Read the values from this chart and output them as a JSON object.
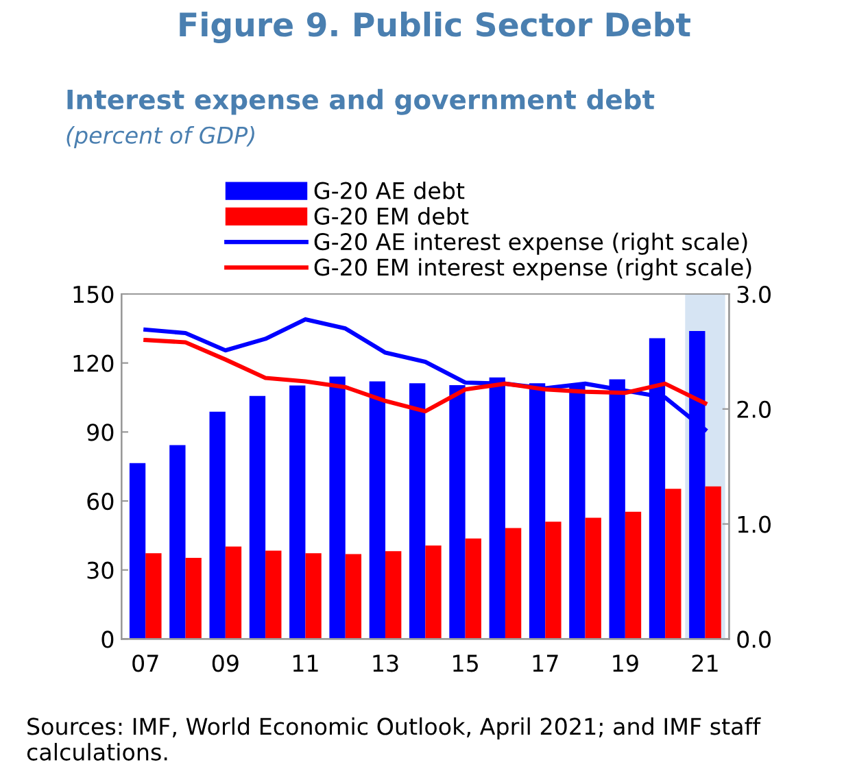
{
  "chart_data": {
    "type": "bar",
    "title": "Figure 9. Public Sector Debt",
    "subtitle": "Interest expense and government debt",
    "categories": [
      "07",
      null,
      "09",
      null,
      "11",
      null,
      "13",
      null,
      "15",
      null,
      "17",
      null,
      "19",
      null,
      "21"
    ],
    "series": [
      {
        "name": "G-20 AE debt",
        "color": "#0000ff",
        "values": [
          76.5,
          84.3,
          98.8,
          105.7,
          110.2,
          114.1,
          112.0,
          111.2,
          110.4,
          113.7,
          111.2,
          110.8,
          112.9,
          130.8,
          133.9
        ]
      },
      {
        "name": "G-20 EM debt",
        "color": "#ff0000",
        "values": [
          37.3,
          35.3,
          40.2,
          38.4,
          37.3,
          36.9,
          38.2,
          40.6,
          43.7,
          48.2,
          51.0,
          52.7,
          55.3,
          65.3,
          66.3
        ]
      },
      {
        "name": "G-20 AE interest expense (right scale)",
        "type": "line",
        "axis": "y2",
        "color": "#0000ff",
        "values": [
          2.69,
          2.66,
          2.51,
          2.61,
          2.78,
          2.7,
          2.49,
          2.41,
          2.23,
          2.22,
          2.18,
          2.22,
          2.16,
          2.1,
          1.82
        ]
      },
      {
        "name": "G-20 EM interest expense (right scale)",
        "type": "line",
        "axis": "y2",
        "color": "#ff0000",
        "values": [
          2.6,
          2.58,
          2.43,
          2.27,
          2.24,
          2.19,
          2.07,
          1.98,
          2.17,
          2.22,
          2.17,
          2.15,
          2.14,
          2.22,
          2.05
        ]
      }
    ],
    "ylim": [
      0,
      150
    ],
    "yticks": [
      0,
      30,
      60,
      90,
      120,
      150
    ],
    "y2lim": [
      0,
      3.0
    ],
    "y2ticks": [
      {
        "value": 0,
        "label": "0.0"
      },
      {
        "value": 1,
        "label": "1.0"
      },
      {
        "value": 2,
        "label": "2.0"
      },
      {
        "value": 3,
        "label": "3.0"
      }
    ],
    "bands": [
      {
        "axis": "x",
        "from": "21",
        "to": "21",
        "color": "#c5d9ee"
      }
    ],
    "legend": "top",
    "grid": false,
    "annotations": [
      "(percent of GDP)",
      "Sources: IMF, World Economic Outlook, April 2021; and IMF staff calculations."
    ]
  }
}
